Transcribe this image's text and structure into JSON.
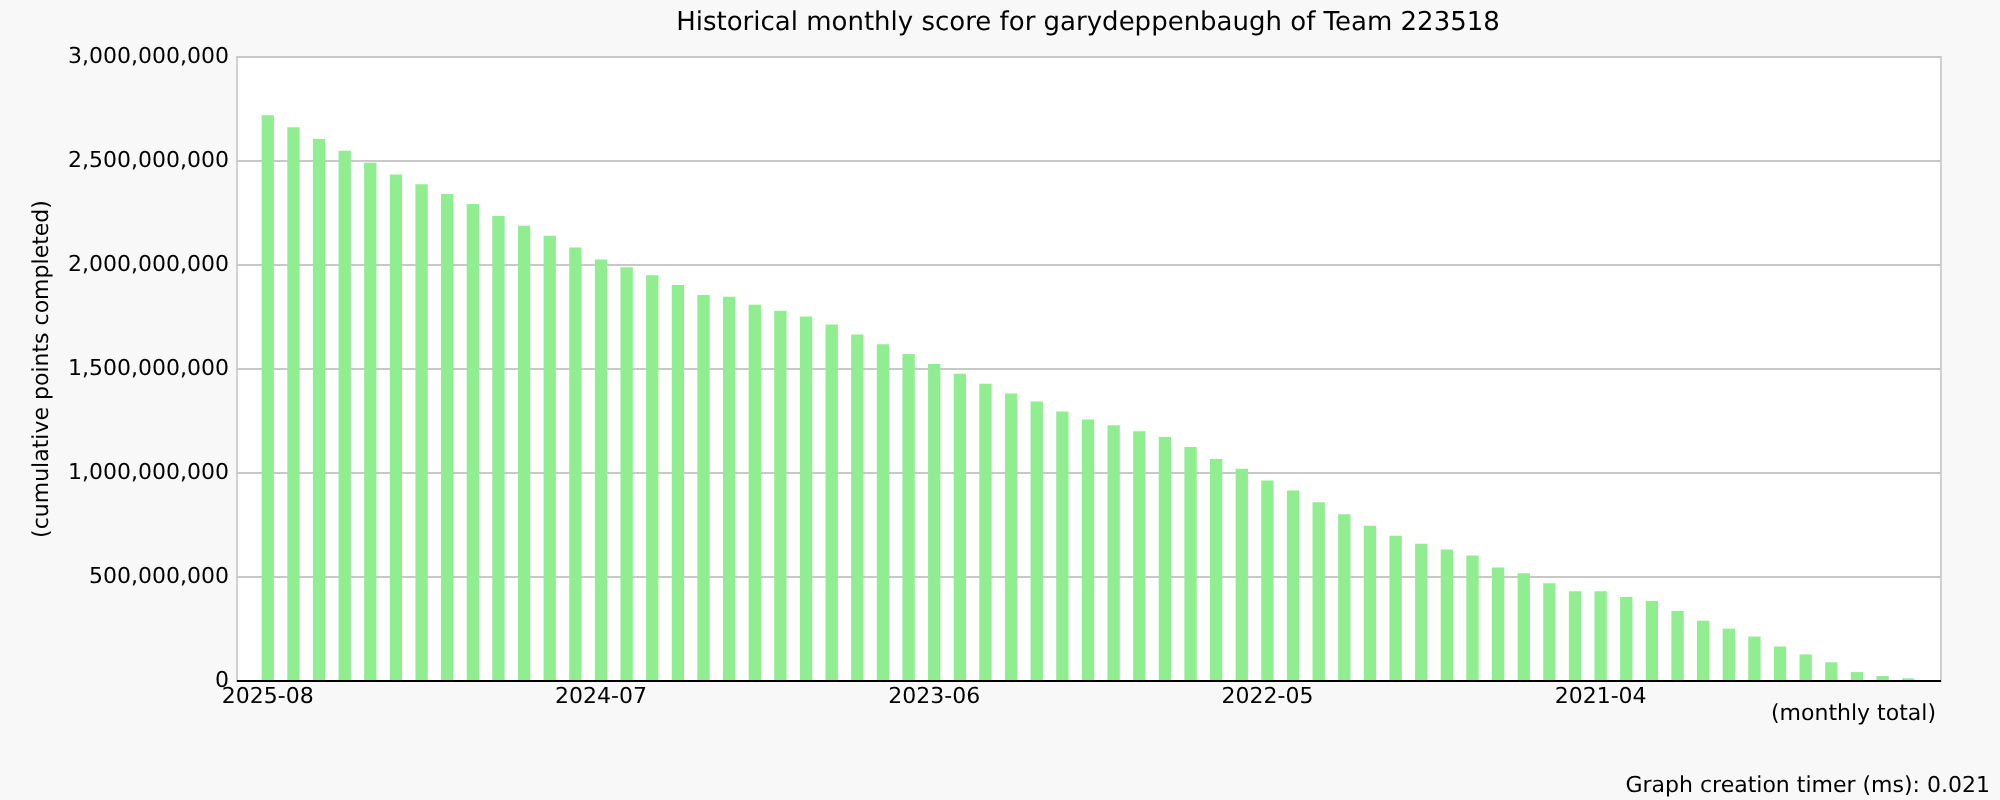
{
  "chart_data": {
    "type": "bar",
    "title": "Historical monthly score for garydeppenbaugh of Team 223518",
    "ylabel": "(cumulative points completed)",
    "annotations": [
      "(monthly total)",
      "Graph creation timer (ms): 0.021"
    ],
    "categories": [
      "2025-08",
      null,
      null,
      null,
      null,
      null,
      null,
      null,
      null,
      null,
      null,
      null,
      null,
      "2024-07",
      null,
      null,
      null,
      null,
      null,
      null,
      null,
      null,
      null,
      null,
      null,
      null,
      "2023-06",
      null,
      null,
      null,
      null,
      null,
      null,
      null,
      null,
      null,
      null,
      null,
      null,
      "2022-05",
      null,
      null,
      null,
      null,
      null,
      null,
      null,
      null,
      null,
      null,
      null,
      null,
      "2021-04",
      null,
      null,
      null,
      null,
      null,
      null,
      null,
      null,
      null,
      null,
      null,
      null
    ],
    "values": [
      2715000000,
      2658000000,
      2601000000,
      2544000000,
      2487000000,
      2430000000,
      2383000000,
      2336000000,
      2288000000,
      2231000000,
      2184000000,
      2136000000,
      2079000000,
      2022000000,
      1984000000,
      1946000000,
      1899000000,
      1851000000,
      1842000000,
      1804000000,
      1775000000,
      1747000000,
      1709000000,
      1661000000,
      1614000000,
      1567000000,
      1519000000,
      1472000000,
      1424000000,
      1377000000,
      1339000000,
      1291000000,
      1253000000,
      1225000000,
      1196000000,
      1168000000,
      1120000000,
      1063000000,
      1016000000,
      959000000,
      911000000,
      854000000,
      797000000,
      741000000,
      693000000,
      655000000,
      627000000,
      598000000,
      541000000,
      513000000,
      465000000,
      427000000,
      427000000,
      399000000,
      380000000,
      332000000,
      285000000,
      247000000,
      209000000,
      161000000,
      123000000,
      85000000,
      38000000,
      19000000,
      8000000
    ],
    "color": "#90ee90",
    "ylim": [
      0,
      3000000000
    ],
    "yticks": [
      {
        "value": 0,
        "label": "0"
      },
      {
        "value": 500000000,
        "label": "500,000,000"
      },
      {
        "value": 1000000000,
        "label": "1,000,000,000"
      },
      {
        "value": 1500000000,
        "label": "1,500,000,000"
      },
      {
        "value": 2000000000,
        "label": "2,000,000,000"
      },
      {
        "value": 2500000000,
        "label": "2,500,000,000"
      },
      {
        "value": 3000000000,
        "label": "3,000,000,000"
      }
    ],
    "grid": "y"
  }
}
